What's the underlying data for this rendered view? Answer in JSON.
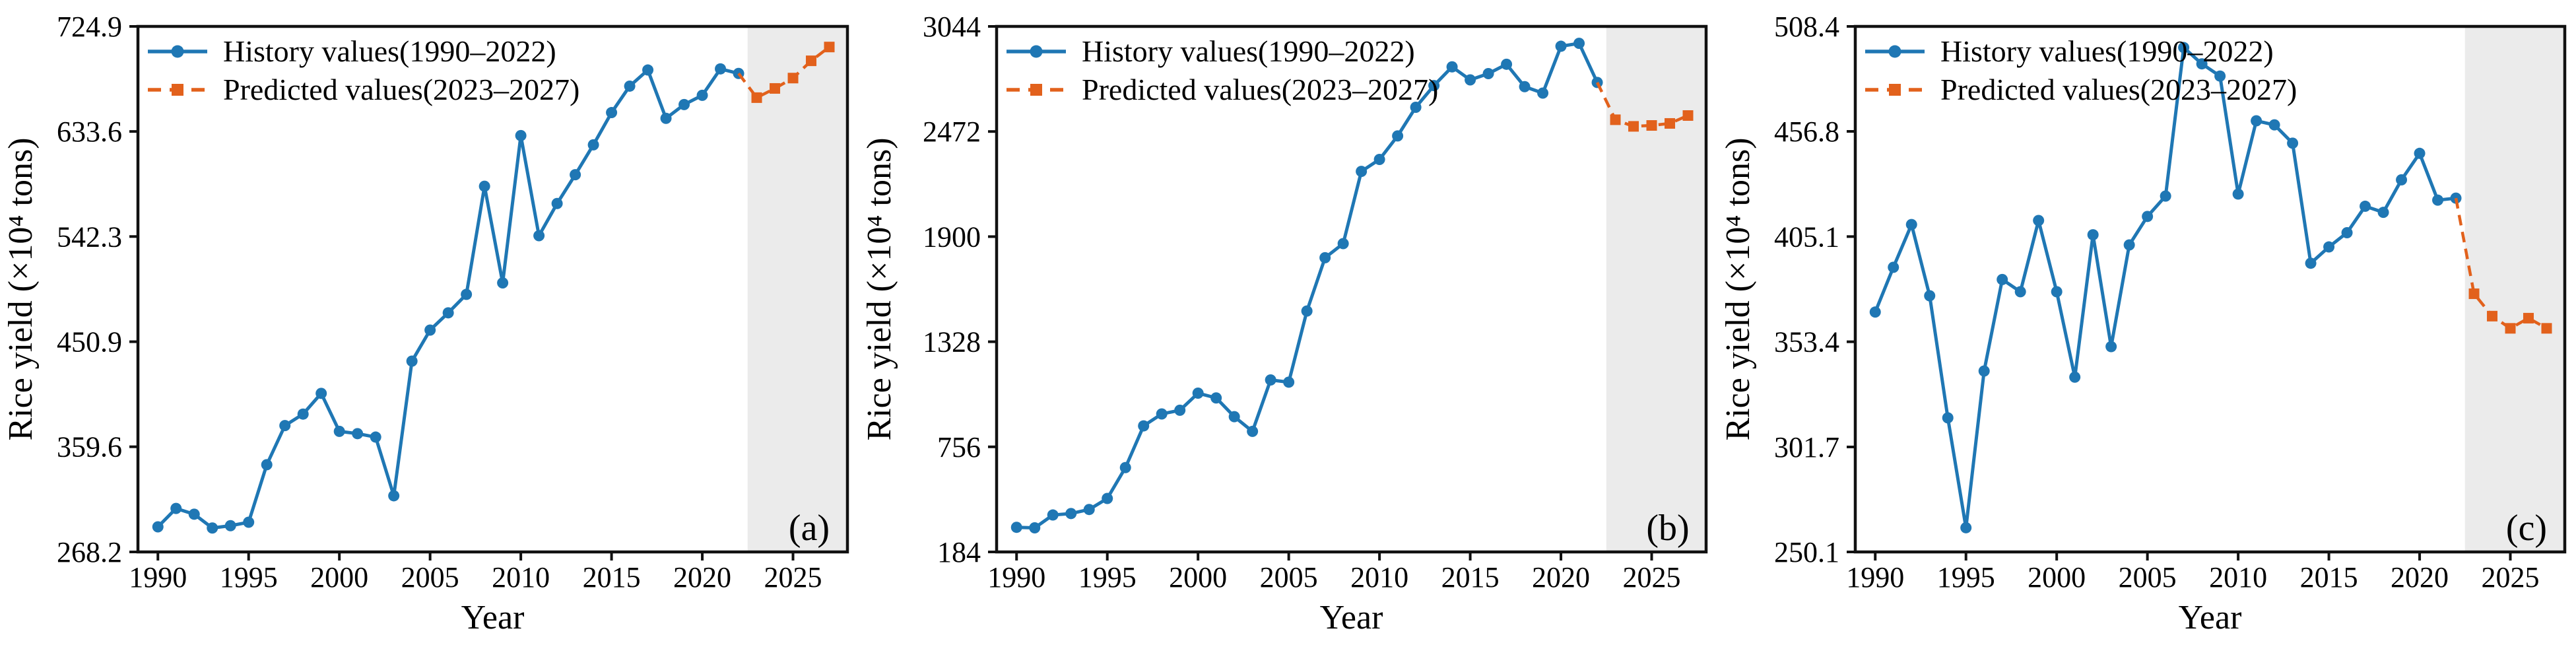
{
  "figure": {
    "background": "#ffffff",
    "xlabel": "Year",
    "ylabel": "Rice yield (×10⁴ tons)",
    "legend": {
      "history_label": "History values(1990–2022)",
      "predicted_label": "Predicted values(2023–2027)"
    },
    "colors": {
      "history": "#1f77b4",
      "predicted": "#e2611c",
      "forecast_shade": "#ebebeb",
      "axis": "#111111",
      "text": "#000000"
    }
  },
  "chart_data": [
    {
      "type": "line",
      "panel_label": "(a)",
      "xlabel": "Year",
      "ylabel": "Rice yield (×10⁴ tons)",
      "xlim": [
        1988.9,
        2028.0
      ],
      "ylim": [
        268.2,
        724.9
      ],
      "xticks": [
        1990,
        1995,
        2000,
        2005,
        2010,
        2015,
        2020,
        2025
      ],
      "yticks": [
        268.2,
        359.6,
        450.9,
        542.3,
        633.6,
        724.9
      ],
      "grid": false,
      "legend_position": "upper left",
      "forecast_shade_start": 2022.5,
      "years_history": [
        1990,
        1991,
        1992,
        1993,
        1994,
        1995,
        1996,
        1997,
        1998,
        1999,
        2000,
        2001,
        2002,
        2003,
        2004,
        2005,
        2006,
        2007,
        2008,
        2009,
        2010,
        2011,
        2012,
        2013,
        2014,
        2015,
        2016,
        2017,
        2018,
        2019,
        2020,
        2021,
        2022
      ],
      "years_predicted": [
        2023,
        2024,
        2025,
        2026,
        2027
      ],
      "series": [
        {
          "name": "History values(1990–2022)",
          "style": "solid",
          "marker": "circle",
          "values": [
            290,
            306,
            301,
            289,
            291,
            294,
            344,
            378,
            388,
            406,
            373,
            371,
            368,
            317,
            434,
            461,
            476,
            492,
            586,
            502,
            630,
            543,
            571,
            596,
            622,
            650,
            673,
            687,
            645,
            657,
            665,
            688,
            684
          ]
        },
        {
          "name": "Predicted values(2023–2027)",
          "style": "dashed",
          "marker": "square",
          "values": [
            663,
            671,
            680,
            695,
            707
          ]
        }
      ]
    },
    {
      "type": "line",
      "panel_label": "(b)",
      "xlabel": "Year",
      "ylabel": "Rice yield (×10⁴ tons)",
      "xlim": [
        1988.9,
        2028.0
      ],
      "ylim": [
        184,
        3044
      ],
      "xticks": [
        1990,
        1995,
        2000,
        2005,
        2010,
        2015,
        2020,
        2025
      ],
      "yticks": [
        184,
        756,
        1328,
        1900,
        2472,
        3044
      ],
      "grid": false,
      "legend_position": "upper left",
      "forecast_shade_start": 2022.5,
      "years_history": [
        1990,
        1991,
        1992,
        1993,
        1994,
        1995,
        1996,
        1997,
        1998,
        1999,
        2000,
        2001,
        2002,
        2003,
        2004,
        2005,
        2006,
        2007,
        2008,
        2009,
        2010,
        2011,
        2012,
        2013,
        2014,
        2015,
        2016,
        2017,
        2018,
        2019,
        2020,
        2021,
        2022
      ],
      "years_predicted": [
        2023,
        2024,
        2025,
        2026,
        2027
      ],
      "series": [
        {
          "name": "History values(1990–2022)",
          "style": "solid",
          "marker": "circle",
          "values": [
            318,
            315,
            385,
            393,
            415,
            475,
            643,
            870,
            935,
            955,
            1048,
            1022,
            920,
            840,
            1120,
            1108,
            1495,
            1785,
            1862,
            2255,
            2320,
            2448,
            2604,
            2722,
            2824,
            2753,
            2787,
            2838,
            2716,
            2681,
            2936,
            2952,
            2739
          ]
        },
        {
          "name": "Predicted values(2023–2027)",
          "style": "dashed",
          "marker": "square",
          "values": [
            2536,
            2500,
            2505,
            2516,
            2559
          ]
        }
      ]
    },
    {
      "type": "line",
      "panel_label": "(c)",
      "xlabel": "Year",
      "ylabel": "Rice yield (×10⁴ tons)",
      "xlim": [
        1988.9,
        2028.0
      ],
      "ylim": [
        250.1,
        508.4
      ],
      "xticks": [
        1990,
        1995,
        2000,
        2005,
        2010,
        2015,
        2020,
        2025
      ],
      "yticks": [
        250.1,
        301.7,
        353.4,
        405.1,
        456.8,
        508.4
      ],
      "grid": false,
      "legend_position": "upper left",
      "forecast_shade_start": 2022.5,
      "years_history": [
        1990,
        1991,
        1992,
        1993,
        1994,
        1995,
        1996,
        1997,
        1998,
        1999,
        2000,
        2001,
        2002,
        2003,
        2004,
        2005,
        2006,
        2007,
        2008,
        2009,
        2010,
        2011,
        2012,
        2013,
        2014,
        2015,
        2016,
        2017,
        2018,
        2019,
        2020,
        2021,
        2022
      ],
      "years_predicted": [
        2023,
        2024,
        2025,
        2026,
        2027
      ],
      "series": [
        {
          "name": "History values(1990–2022)",
          "style": "solid",
          "marker": "circle",
          "values": [
            368,
            390,
            411,
            376,
            316,
            262,
            339,
            384,
            378,
            413,
            378,
            336,
            406,
            351,
            401,
            415,
            425,
            498,
            490,
            484,
            426,
            462,
            460,
            451,
            392,
            400,
            407,
            420,
            417,
            433,
            446,
            423,
            424
          ]
        },
        {
          "name": "Predicted values(2023–2027)",
          "style": "dashed",
          "marker": "square",
          "values": [
            377,
            366,
            360,
            365,
            360
          ]
        }
      ]
    }
  ]
}
